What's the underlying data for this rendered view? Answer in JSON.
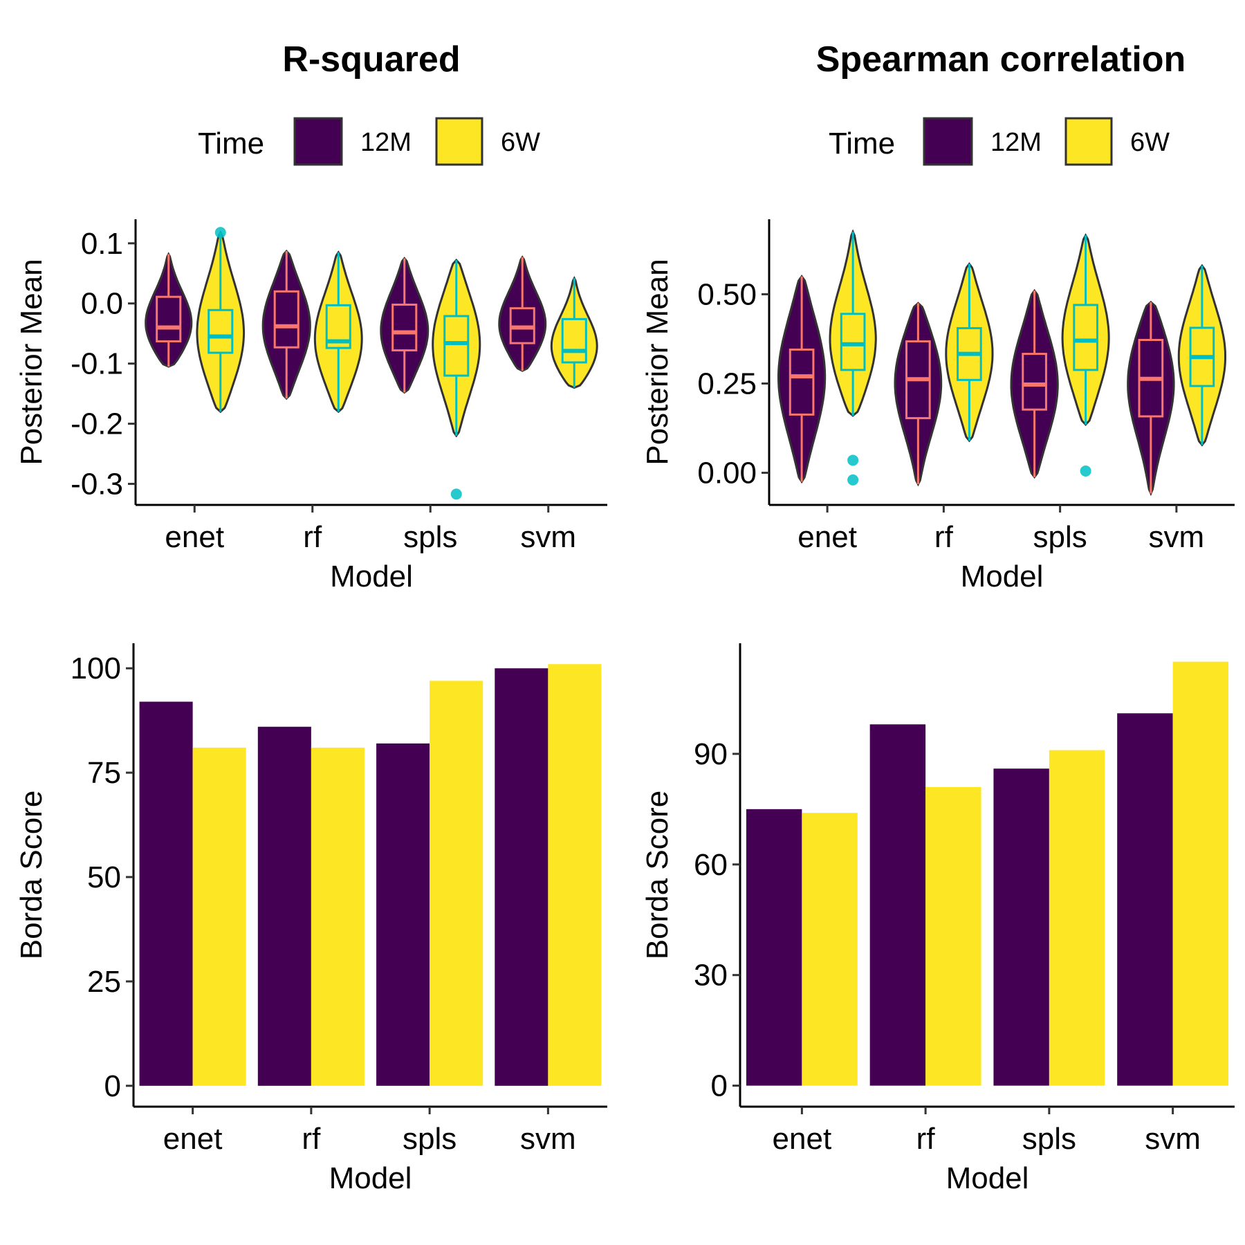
{
  "colors": {
    "t12M": "#440154",
    "t6W": "#FDE725",
    "box12M": "#F8766D",
    "box6W": "#00BFC4",
    "outline": "#333333"
  },
  "legend": {
    "title": "Time",
    "labels": [
      "12M",
      "6W"
    ]
  },
  "chart_data": [
    {
      "id": "rsq-violin",
      "type": "violin",
      "title": "R-squared",
      "xlabel": "Model",
      "ylabel": "Posterior Mean",
      "categories": [
        "enet",
        "rf",
        "spls",
        "svm"
      ],
      "ylim": [
        -0.335,
        0.14
      ],
      "yticks": [
        0.1,
        0.0,
        -0.1,
        -0.2,
        -0.3
      ],
      "ytick_labels": [
        "0.1",
        "0.0",
        "-0.1",
        "-0.2",
        "-0.3"
      ],
      "series": [
        {
          "name": "12M",
          "groups": [
            {
              "min": -0.105,
              "max": 0.082,
              "q1": -0.063,
              "median": -0.04,
              "q3": 0.011,
              "outliers": []
            },
            {
              "min": -0.158,
              "max": 0.087,
              "q1": -0.073,
              "median": -0.038,
              "q3": 0.02,
              "outliers": []
            },
            {
              "min": -0.148,
              "max": 0.075,
              "q1": -0.078,
              "median": -0.048,
              "q3": -0.002,
              "outliers": []
            },
            {
              "min": -0.112,
              "max": 0.077,
              "q1": -0.066,
              "median": -0.04,
              "q3": -0.008,
              "outliers": []
            }
          ]
        },
        {
          "name": "6W",
          "groups": [
            {
              "min": -0.18,
              "max": 0.118,
              "q1": -0.082,
              "median": -0.055,
              "q3": -0.011,
              "outliers": [
                0.118
              ]
            },
            {
              "min": -0.18,
              "max": 0.085,
              "q1": -0.074,
              "median": -0.063,
              "q3": -0.003,
              "outliers": []
            },
            {
              "min": -0.22,
              "max": 0.072,
              "q1": -0.12,
              "median": -0.066,
              "q3": -0.021,
              "outliers": [
                -0.317
              ]
            },
            {
              "min": -0.14,
              "max": 0.042,
              "q1": -0.098,
              "median": -0.079,
              "q3": -0.026,
              "outliers": []
            }
          ]
        }
      ]
    },
    {
      "id": "spear-violin",
      "type": "violin",
      "title": "Spearman correlation",
      "xlabel": "Model",
      "ylabel": "Posterior Mean",
      "categories": [
        "enet",
        "rf",
        "spls",
        "svm"
      ],
      "ylim": [
        -0.09,
        0.71
      ],
      "yticks": [
        0.5,
        0.25,
        0.0
      ],
      "ytick_labels": [
        "0.50",
        "0.25",
        "0.00"
      ],
      "series": [
        {
          "name": "12M",
          "groups": [
            {
              "min": -0.025,
              "max": 0.55,
              "q1": 0.163,
              "median": 0.27,
              "q3": 0.345,
              "outliers": []
            },
            {
              "min": -0.032,
              "max": 0.475,
              "q1": 0.153,
              "median": 0.262,
              "q3": 0.368,
              "outliers": []
            },
            {
              "min": -0.012,
              "max": 0.51,
              "q1": 0.177,
              "median": 0.247,
              "q3": 0.333,
              "outliers": []
            },
            {
              "min": -0.058,
              "max": 0.478,
              "q1": 0.158,
              "median": 0.263,
              "q3": 0.372,
              "outliers": []
            }
          ]
        },
        {
          "name": "6W",
          "groups": [
            {
              "min": 0.16,
              "max": 0.675,
              "q1": 0.288,
              "median": 0.36,
              "q3": 0.445,
              "outliers": [
                0.035,
                -0.02
              ]
            },
            {
              "min": 0.09,
              "max": 0.585,
              "q1": 0.26,
              "median": 0.333,
              "q3": 0.405,
              "outliers": []
            },
            {
              "min": 0.135,
              "max": 0.665,
              "q1": 0.288,
              "median": 0.37,
              "q3": 0.47,
              "outliers": [
                0.005
              ]
            },
            {
              "min": 0.078,
              "max": 0.58,
              "q1": 0.243,
              "median": 0.324,
              "q3": 0.406,
              "outliers": []
            }
          ]
        }
      ]
    },
    {
      "id": "rsq-bar",
      "type": "bar",
      "title": "",
      "xlabel": "Model",
      "ylabel": "Borda Score",
      "categories": [
        "enet",
        "rf",
        "spls",
        "svm"
      ],
      "ylim": [
        -5,
        106
      ],
      "yticks": [
        100,
        75,
        50,
        25,
        0
      ],
      "ytick_labels": [
        "100",
        "75",
        "50",
        "25",
        "0"
      ],
      "series": [
        {
          "name": "12M",
          "values": [
            92,
            86,
            82,
            100
          ]
        },
        {
          "name": "6W",
          "values": [
            81,
            81,
            97,
            101
          ]
        }
      ]
    },
    {
      "id": "spear-bar",
      "type": "bar",
      "title": "",
      "xlabel": "Model",
      "ylabel": "Borda Score",
      "categories": [
        "enet",
        "rf",
        "spls",
        "svm"
      ],
      "ylim": [
        -5.7,
        120
      ],
      "yticks": [
        90,
        60,
        30,
        0
      ],
      "ytick_labels": [
        "90",
        "60",
        "30",
        "0"
      ],
      "series": [
        {
          "name": "12M",
          "values": [
            75,
            98,
            86,
            101
          ]
        },
        {
          "name": "6W",
          "values": [
            74,
            81,
            91,
            115
          ]
        }
      ]
    }
  ]
}
